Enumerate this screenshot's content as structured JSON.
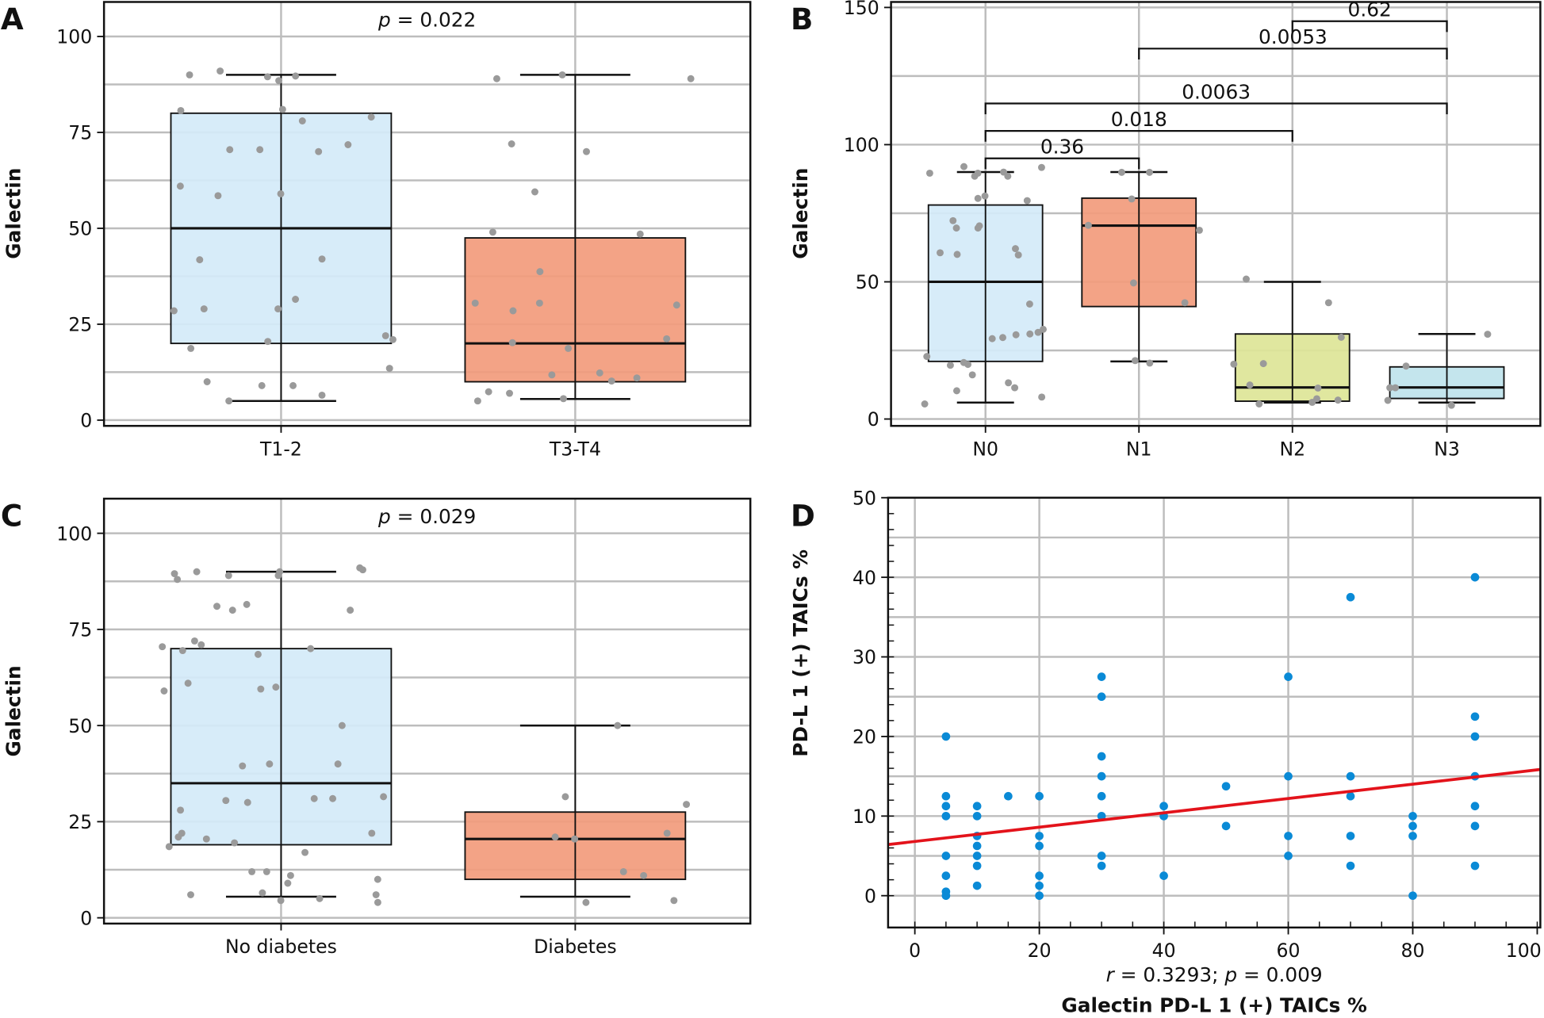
{
  "chart_data": [
    {
      "panel": "A",
      "type": "box",
      "ylabel": "Galectin",
      "annotation": {
        "pre": "p",
        "post": " = 0.022"
      },
      "categories": [
        "T1-2",
        "T3-T4"
      ],
      "ylim": [
        -1.5,
        109
      ],
      "yticks": [
        0,
        25,
        50,
        75,
        100
      ],
      "grid": true,
      "colors": [
        "#d4eaf9",
        "#f29b7c"
      ],
      "boxes": [
        {
          "whisker_low": 5,
          "q1": 20,
          "median": 50,
          "q3": 80,
          "whisker_high": 90
        },
        {
          "whisker_low": 5.5,
          "q1": 10,
          "median": 20,
          "q3": 47.5,
          "whisker_high": 90
        }
      ],
      "points": [
        [
          88.5,
          89.7,
          90,
          91,
          89.5,
          81,
          80.7,
          79,
          78,
          70.5,
          70.5,
          71.8,
          70,
          61,
          59,
          58.5,
          42,
          41.8,
          31.5,
          29,
          29,
          28.5,
          22,
          21,
          18.7,
          20.5,
          13.5,
          10,
          9,
          9,
          6.5,
          5
        ],
        [
          89,
          89,
          90,
          72,
          70,
          59.5,
          49,
          48.5,
          38.7,
          30.5,
          30.5,
          30,
          28.5,
          21.2,
          18.7,
          20.2,
          12.3,
          11.8,
          11,
          10.2,
          7.4,
          7,
          5.6,
          5
        ]
      ]
    },
    {
      "panel": "B",
      "type": "box",
      "ylabel": "Galectin",
      "categories": [
        "N0",
        "N1",
        "N2",
        "N3"
      ],
      "ylim": [
        -2.5,
        152
      ],
      "yticks": [
        0,
        50,
        100,
        150
      ],
      "grid": true,
      "colors": [
        "#d4eaf9",
        "#f29b7c",
        "#dde597",
        "#bfe3ec"
      ],
      "boxes": [
        {
          "whisker_low": 6,
          "q1": 21,
          "median": 50,
          "q3": 78,
          "whisker_high": 90
        },
        {
          "whisker_low": 21,
          "q1": 41,
          "median": 70.5,
          "q3": 80.5,
          "whisker_high": 90
        },
        {
          "whisker_low": 6,
          "q1": 6.5,
          "median": 11.5,
          "q3": 31,
          "whisker_high": 50
        },
        {
          "whisker_low": 6,
          "q1": 7.5,
          "median": 11.5,
          "q3": 19,
          "whisker_high": 31
        }
      ],
      "brackets": [
        {
          "from": 0,
          "to": 1,
          "y": 95,
          "label": "0.36"
        },
        {
          "from": 0,
          "to": 2,
          "y": 105,
          "label": "0.018"
        },
        {
          "from": 0,
          "to": 3,
          "y": 115,
          "label": "0.0063"
        },
        {
          "from": 1,
          "to": 3,
          "y": 135,
          "label": "0.0053"
        },
        {
          "from": 2,
          "to": 3,
          "y": 145,
          "label": "0.62"
        }
      ],
      "points": [
        [
          89.6,
          88.5,
          88.5,
          90,
          91.7,
          92,
          89.6,
          81.3,
          80.4,
          79.6,
          70.4,
          69.6,
          69.6,
          72.3,
          62.1,
          60.6,
          60,
          59.8,
          41.9,
          32.7,
          31.6,
          31,
          30.7,
          29.7,
          29.3,
          22.8,
          20.6,
          19.9,
          19.6,
          16.1,
          13.2,
          11.4,
          10.3,
          8,
          5.5
        ],
        [
          89.9,
          89.9,
          80.2,
          70.6,
          68.8,
          49.6,
          42.4,
          20.4,
          21.3
        ],
        [
          51,
          42.4,
          29.8,
          20.2,
          20,
          12.4,
          11.3,
          7.4,
          6.1,
          6.9,
          5.5
        ],
        [
          30.9,
          19.3,
          11.4,
          11.4,
          6.8,
          5
        ]
      ]
    },
    {
      "panel": "C",
      "type": "box",
      "ylabel": "Galectin",
      "annotation": {
        "pre": "p",
        "post": " = 0.029"
      },
      "categories": [
        "No diabetes",
        "Diabetes"
      ],
      "ylim": [
        -1.5,
        109
      ],
      "yticks": [
        0,
        25,
        50,
        75,
        100
      ],
      "grid": true,
      "colors": [
        "#d4eaf9",
        "#f29b7c"
      ],
      "boxes": [
        {
          "whisker_low": 5.5,
          "q1": 19,
          "median": 35,
          "q3": 70,
          "whisker_high": 90
        },
        {
          "whisker_low": 5.5,
          "q1": 10,
          "median": 20.5,
          "q3": 27.5,
          "whisker_high": 50
        }
      ],
      "points": [
        [
          91,
          90.5,
          90,
          90,
          89.5,
          89,
          89,
          88,
          81.5,
          81,
          80,
          80,
          72,
          71,
          70.5,
          70,
          69.5,
          68.5,
          61,
          60,
          59.5,
          59,
          50,
          40,
          40,
          39.5,
          31.5,
          31,
          31,
          30.5,
          30,
          28,
          22,
          22,
          21,
          20.5,
          19.5,
          18.5,
          17,
          12,
          12,
          11,
          10,
          9,
          6.5,
          6,
          6,
          5,
          4.5,
          4
        ],
        [
          50,
          31.5,
          29.5,
          22,
          21,
          20.5,
          12,
          11,
          4.5,
          4
        ]
      ]
    },
    {
      "panel": "D",
      "type": "scatter",
      "ylabel": "PD-L 1 (+) TAICs %",
      "xlabel": "Galectin PD-L 1 (+) TAICs %",
      "annotation": {
        "r_pre": "r",
        "r_post": " = 0.3293; ",
        "p_pre": "p",
        "p_post": " = 0.009"
      },
      "xlim": [
        -4.3,
        100.5
      ],
      "ylim": [
        -4,
        50
      ],
      "xticks": [
        0,
        20,
        40,
        60,
        80,
        100
      ],
      "yticks": [
        0,
        10,
        20,
        30,
        40,
        50
      ],
      "grid": true,
      "point_color": "#0a8ad6",
      "line_color": "#e3131b",
      "regression": {
        "intercept": 6.81,
        "slope": 0.09
      },
      "points": [
        [
          5,
          20
        ],
        [
          5,
          12.5
        ],
        [
          5,
          11.25
        ],
        [
          5,
          10
        ],
        [
          5,
          5
        ],
        [
          5,
          2.5
        ],
        [
          5,
          0.5
        ],
        [
          5,
          0
        ],
        [
          10,
          11.25
        ],
        [
          10,
          10
        ],
        [
          10,
          7.5
        ],
        [
          10,
          6.25
        ],
        [
          10,
          5
        ],
        [
          10,
          3.75
        ],
        [
          10,
          1.25
        ],
        [
          15,
          12.5
        ],
        [
          20,
          12.5
        ],
        [
          20,
          7.5
        ],
        [
          20,
          6.25
        ],
        [
          20,
          2.5
        ],
        [
          20,
          1.25
        ],
        [
          20,
          0
        ],
        [
          30,
          27.5
        ],
        [
          30,
          25
        ],
        [
          30,
          17.5
        ],
        [
          30,
          15
        ],
        [
          30,
          12.5
        ],
        [
          30,
          10
        ],
        [
          30,
          5
        ],
        [
          30,
          3.75
        ],
        [
          40,
          11.25
        ],
        [
          40,
          10
        ],
        [
          40,
          2.5
        ],
        [
          50,
          13.75
        ],
        [
          50,
          8.75
        ],
        [
          60,
          27.5
        ],
        [
          60,
          15
        ],
        [
          60,
          7.5
        ],
        [
          60,
          5
        ],
        [
          70,
          37.5
        ],
        [
          70,
          15
        ],
        [
          70,
          12.5
        ],
        [
          70,
          7.5
        ],
        [
          70,
          3.75
        ],
        [
          80,
          10
        ],
        [
          80,
          8.75
        ],
        [
          80,
          7.5
        ],
        [
          80,
          0
        ],
        [
          90,
          40
        ],
        [
          90,
          22.5
        ],
        [
          90,
          20
        ],
        [
          90,
          15
        ],
        [
          90,
          11.25
        ],
        [
          90,
          8.75
        ],
        [
          90,
          3.75
        ]
      ]
    }
  ]
}
